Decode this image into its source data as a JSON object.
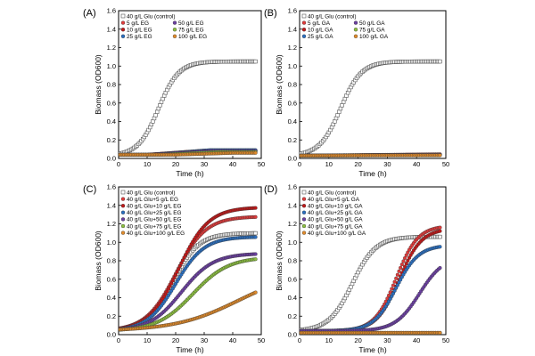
{
  "chart_data": [
    {
      "type": "scatter",
      "panel": "(A)",
      "xlabel": "Time (h)",
      "ylabel": "Biomass (OD600)",
      "xlim": [
        0,
        50
      ],
      "ylim": [
        0,
        1.6
      ],
      "xticks": [
        "0",
        "10",
        "20",
        "30",
        "40",
        "50"
      ],
      "yticks": [
        "0.0",
        "0.2",
        "0.4",
        "0.6",
        "0.8",
        "1.0",
        "1.2",
        "1.4",
        "1.6"
      ],
      "legend_columns": 2,
      "series": [
        {
          "name": "40 g/L Glu (control)",
          "color": "#ffffff",
          "marker": "square",
          "model": {
            "lag": 14,
            "k": 0.28,
            "max": 1.05,
            "base": 0.03,
            "t_end": 48
          }
        },
        {
          "name": "5 g/L EG",
          "color": "#e03a3a",
          "marker": "circle",
          "model": {
            "flat": true,
            "t0": 10,
            "t1": 30,
            "v0": 0.04,
            "v1": 0.085,
            "t_end": 48
          }
        },
        {
          "name": "10 g/L EG",
          "color": "#c01818",
          "marker": "circle",
          "model": {
            "flat": true,
            "t0": 10,
            "t1": 30,
            "v0": 0.04,
            "v1": 0.08,
            "t_end": 48
          }
        },
        {
          "name": "25 g/L EG",
          "color": "#2a6fc0",
          "marker": "circle",
          "model": {
            "flat": true,
            "t0": 12,
            "t1": 32,
            "v0": 0.04,
            "v1": 0.09,
            "t_end": 48
          }
        },
        {
          "name": "50 g/L EG",
          "color": "#6a3fa0",
          "marker": "circle",
          "model": {
            "flat": true,
            "t0": 12,
            "t1": 32,
            "v0": 0.04,
            "v1": 0.08,
            "t_end": 48
          }
        },
        {
          "name": "75 g/L EG",
          "color": "#8bbf3f",
          "marker": "circle",
          "model": {
            "flat": true,
            "t0": 15,
            "t1": 35,
            "v0": 0.04,
            "v1": 0.07,
            "t_end": 48
          }
        },
        {
          "name": "100 g/L EG",
          "color": "#e08a2a",
          "marker": "circle",
          "model": {
            "flat": true,
            "t0": 20,
            "t1": 40,
            "v0": 0.04,
            "v1": 0.06,
            "t_end": 48
          }
        }
      ]
    },
    {
      "type": "scatter",
      "panel": "(B)",
      "xlabel": "Time (h)",
      "ylabel": "Biomass (OD600)",
      "xlim": [
        0,
        50
      ],
      "ylim": [
        0,
        1.6
      ],
      "xticks": [
        "0",
        "10",
        "20",
        "30",
        "40",
        "50"
      ],
      "yticks": [
        "0.0",
        "0.2",
        "0.4",
        "0.6",
        "0.8",
        "1.0",
        "1.2",
        "1.4",
        "1.6"
      ],
      "legend_columns": 2,
      "series": [
        {
          "name": "40 g/L Glu (control)",
          "color": "#ffffff",
          "marker": "square",
          "model": {
            "lag": 14,
            "k": 0.28,
            "max": 1.05,
            "base": 0.03,
            "t_end": 48
          }
        },
        {
          "name": "5 g/L GA",
          "color": "#e03a3a",
          "marker": "circle",
          "model": {
            "flat": true,
            "t0": 0,
            "t1": 48,
            "v0": 0.03,
            "v1": 0.045,
            "t_end": 48
          }
        },
        {
          "name": "10 g/L GA",
          "color": "#c01818",
          "marker": "circle",
          "model": {
            "flat": true,
            "t0": 0,
            "t1": 48,
            "v0": 0.03,
            "v1": 0.04,
            "t_end": 48
          }
        },
        {
          "name": "25 g/L GA",
          "color": "#2a6fc0",
          "marker": "circle",
          "model": {
            "flat": true,
            "t0": 0,
            "t1": 48,
            "v0": 0.03,
            "v1": 0.04,
            "t_end": 48
          }
        },
        {
          "name": "50 g/L GA",
          "color": "#6a3fa0",
          "marker": "circle",
          "model": {
            "flat": true,
            "t0": 0,
            "t1": 48,
            "v0": 0.03,
            "v1": 0.04,
            "t_end": 48
          }
        },
        {
          "name": "75 g/L GA",
          "color": "#8bbf3f",
          "marker": "circle",
          "model": {
            "flat": true,
            "t0": 0,
            "t1": 48,
            "v0": 0.03,
            "v1": 0.035,
            "t_end": 48
          }
        },
        {
          "name": "100 g/L GA",
          "color": "#e08a2a",
          "marker": "circle",
          "model": {
            "flat": true,
            "t0": 0,
            "t1": 48,
            "v0": 0.03,
            "v1": 0.035,
            "t_end": 48
          }
        }
      ]
    },
    {
      "type": "scatter",
      "panel": "(C)",
      "xlabel": "Time (h)",
      "ylabel": "Biomass (OD600)",
      "xlim": [
        0,
        50
      ],
      "ylim": [
        0,
        1.6
      ],
      "xticks": [
        "0",
        "10",
        "20",
        "30",
        "40",
        "50"
      ],
      "yticks": [
        "0.0",
        "0.2",
        "0.4",
        "0.6",
        "0.8",
        "1.0",
        "1.2",
        "1.4",
        "1.6"
      ],
      "legend_columns": 1,
      "series": [
        {
          "name": "40 g/L Glu (control)",
          "color": "#ffffff",
          "marker": "square",
          "model": {
            "lag": 19,
            "k": 0.22,
            "max": 1.1,
            "base": 0.04,
            "t_end": 48
          }
        },
        {
          "name": "40 g/L Glu+5 g/L EG",
          "color": "#e03a3a",
          "marker": "circle",
          "model": {
            "lag": 20,
            "k": 0.19,
            "max": 1.28,
            "base": 0.04,
            "t_end": 48
          }
        },
        {
          "name": "40 g/L Glu+10 g/L EG",
          "color": "#c01818",
          "marker": "circle",
          "model": {
            "lag": 21,
            "k": 0.19,
            "max": 1.38,
            "base": 0.04,
            "t_end": 48
          }
        },
        {
          "name": "40 g/L Glu+25 g/L EG",
          "color": "#2a6fc0",
          "marker": "circle",
          "model": {
            "lag": 20,
            "k": 0.2,
            "max": 1.06,
            "base": 0.04,
            "t_end": 48
          }
        },
        {
          "name": "40 g/L Glu+50 g/L EG",
          "color": "#6a3fa0",
          "marker": "circle",
          "model": {
            "lag": 22,
            "k": 0.18,
            "max": 0.88,
            "base": 0.04,
            "t_end": 48
          }
        },
        {
          "name": "40 g/L Glu+75 g/L EG",
          "color": "#8bbf3f",
          "marker": "circle",
          "model": {
            "lag": 26,
            "k": 0.16,
            "max": 0.84,
            "base": 0.04,
            "t_end": 48
          }
        },
        {
          "name": "40 g/L Glu+100 g/L EG",
          "color": "#e08a2a",
          "marker": "circle",
          "model": {
            "lag": 42,
            "k": 0.09,
            "max": 0.7,
            "base": 0.04,
            "t_end": 48
          }
        }
      ]
    },
    {
      "type": "scatter",
      "panel": "(D)",
      "xlabel": "Time (h)",
      "ylabel": "Biomass (OD600)",
      "xlim": [
        0,
        50
      ],
      "ylim": [
        0,
        1.6
      ],
      "xticks": [
        "0",
        "10",
        "20",
        "30",
        "40",
        "50"
      ],
      "yticks": [
        "0.0",
        "0.2",
        "0.4",
        "0.6",
        "0.8",
        "1.0",
        "1.2",
        "1.4",
        "1.6"
      ],
      "legend_columns": 1,
      "series": [
        {
          "name": "40 g/L Glu (control)",
          "color": "#ffffff",
          "marker": "square",
          "model": {
            "lag": 18,
            "k": 0.25,
            "max": 1.06,
            "base": 0.04,
            "t_end": 48
          }
        },
        {
          "name": "40 g/L Glu+5 g/L GA",
          "color": "#e03a3a",
          "marker": "circle",
          "model": {
            "lag": 33,
            "k": 0.27,
            "max": 1.18,
            "base": 0.04,
            "t_end": 48
          }
        },
        {
          "name": "40 g/L Glu+10 g/L GA",
          "color": "#c01818",
          "marker": "circle",
          "model": {
            "lag": 34,
            "k": 0.26,
            "max": 1.15,
            "base": 0.04,
            "t_end": 48
          }
        },
        {
          "name": "40 g/L Glu+25 g/L GA",
          "color": "#2a6fc0",
          "marker": "circle",
          "model": {
            "lag": 33,
            "k": 0.26,
            "max": 0.97,
            "base": 0.04,
            "t_end": 48
          }
        },
        {
          "name": "40 g/L Glu+50 g/L GA",
          "color": "#6a3fa0",
          "marker": "circle",
          "model": {
            "lag": 41,
            "k": 0.24,
            "max": 0.85,
            "base": 0.04,
            "t_end": 48
          }
        },
        {
          "name": "40 g/L Glu+75 g/L GA",
          "color": "#8bbf3f",
          "marker": "circle",
          "model": {
            "flat": true,
            "t0": 0,
            "t1": 48,
            "v0": 0.02,
            "v1": 0.02,
            "t_end": 48
          }
        },
        {
          "name": "40 g/L Glu+100 g/L GA",
          "color": "#e08a2a",
          "marker": "circle",
          "model": {
            "flat": true,
            "t0": 0,
            "t1": 48,
            "v0": 0.02,
            "v1": 0.02,
            "t_end": 48
          }
        }
      ]
    }
  ]
}
